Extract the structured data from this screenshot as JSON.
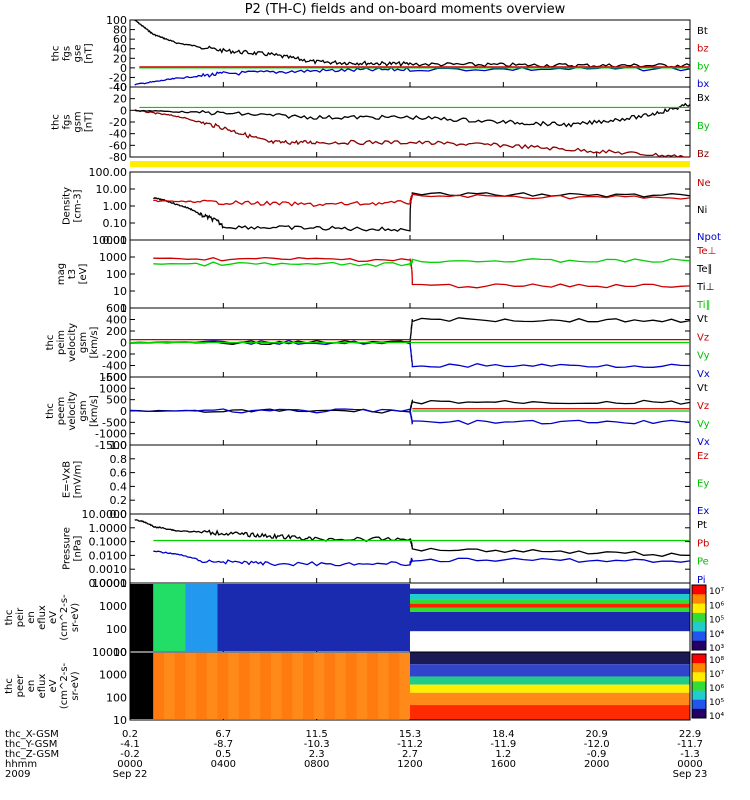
{
  "title": "P2 (TH-C) fields and on-board moments overview",
  "colors": {
    "black": "#000000",
    "red": "#cc0000",
    "darkred": "#8b0000",
    "green": "#00d000",
    "blue": "#0000cc",
    "yellow": "#ffee00"
  },
  "panels": [
    {
      "id": "fgs-gse",
      "ylabel": [
        "thc",
        "fgs",
        "gse",
        "[nT]"
      ],
      "yticks": [
        "100",
        "80",
        "60",
        "40",
        "20",
        "0",
        "-20",
        "-40"
      ],
      "legend": [
        {
          "label": "Bt",
          "color": "#000000"
        },
        {
          "label": "bz",
          "color": "#cc0000"
        },
        {
          "label": "by",
          "color": "#00c000"
        },
        {
          "label": "bx",
          "color": "#0000cc"
        }
      ]
    },
    {
      "id": "fgs-gsm",
      "ylabel": [
        "thc",
        "fgs",
        "gsm",
        "[nT]"
      ],
      "yticks": [
        "40",
        "20",
        "0",
        "-20",
        "-40",
        "-60",
        "-80"
      ],
      "legend": [
        {
          "label": "Bx",
          "color": "#000000"
        },
        {
          "label": "By",
          "color": "#00c000"
        },
        {
          "label": "Bz",
          "color": "#8b0000"
        }
      ]
    },
    {
      "id": "density",
      "ylabel": [
        "Density",
        "[cm-3]"
      ],
      "yticks": [
        "100.00",
        "10.00",
        "1.00",
        "0.10",
        "0.01"
      ],
      "legend": [
        {
          "label": "Ne",
          "color": "#cc0000"
        },
        {
          "label": "Ni",
          "color": "#000000"
        },
        {
          "label": "Npot",
          "color": "#0000cc"
        }
      ]
    },
    {
      "id": "temperature",
      "ylabel": [
        "mag",
        "t3",
        "[eV]"
      ],
      "yticks": [
        "10000",
        "1000",
        "100",
        "10",
        "1"
      ],
      "legend": [
        {
          "label": "Te⊥",
          "color": "#cc0000"
        },
        {
          "label": "Te∥",
          "color": "#000000"
        },
        {
          "label": "Ti⊥",
          "color": "#000000"
        },
        {
          "label": "Ti∥",
          "color": "#00c000"
        }
      ]
    },
    {
      "id": "peim-velocity",
      "ylabel": [
        "thc",
        "peim",
        "velocity",
        "gsm",
        "[km/s]"
      ],
      "yticks": [
        "600",
        "400",
        "200",
        "0",
        "-200",
        "-400",
        "-600"
      ],
      "legend": [
        {
          "label": "Vt",
          "color": "#000000"
        },
        {
          "label": "Vz",
          "color": "#cc0000"
        },
        {
          "label": "Vy",
          "color": "#00c000"
        },
        {
          "label": "Vx",
          "color": "#0000cc"
        }
      ]
    },
    {
      "id": "peem-velocity",
      "ylabel": [
        "thc",
        "peem",
        "velocity",
        "gsm",
        "[km/s]"
      ],
      "yticks": [
        "1500",
        "1000",
        "500",
        "0",
        "-500",
        "-1000",
        "-1500"
      ],
      "legend": [
        {
          "label": "Vt",
          "color": "#000000"
        },
        {
          "label": "Vz",
          "color": "#cc0000"
        },
        {
          "label": "Vy",
          "color": "#00c000"
        },
        {
          "label": "Vx",
          "color": "#0000cc"
        }
      ]
    },
    {
      "id": "efield",
      "ylabel": [
        "E=-VxB",
        "[mV/m]"
      ],
      "yticks": [
        "1.0",
        "0.8",
        "0.6",
        "0.4",
        "0.2",
        "0.0"
      ],
      "legend": [
        {
          "label": "Ez",
          "color": "#cc0000"
        },
        {
          "label": "Ey",
          "color": "#00c000"
        },
        {
          "label": "Ex",
          "color": "#0000cc"
        }
      ]
    },
    {
      "id": "pressure",
      "ylabel": [
        "Pressure",
        "[nPa]"
      ],
      "yticks": [
        "10.0000",
        "1.0000",
        "0.1000",
        "0.0100",
        "0.0010",
        "0.0001"
      ],
      "legend": [
        {
          "label": "Pt",
          "color": "#000000"
        },
        {
          "label": "Pb",
          "color": "#cc0000"
        },
        {
          "label": "Pe",
          "color": "#00c000"
        },
        {
          "label": "Pi",
          "color": "#0000cc"
        }
      ]
    },
    {
      "id": "peir-spec",
      "ylabel": [
        "thc",
        "peir",
        "en",
        "eflux",
        "eV",
        "(cm^2-s-",
        "sr-eV)"
      ],
      "yticks": [
        "10000",
        "1000",
        "100",
        "10"
      ],
      "colorbar": [
        "10⁷",
        "10⁶",
        "10⁵",
        "10⁴",
        "10³"
      ]
    },
    {
      "id": "peer-spec",
      "ylabel": [
        "thc",
        "peer",
        "en",
        "eflux",
        "eV",
        "(cm^2-s-",
        "sr-eV)"
      ],
      "yticks": [
        "10000",
        "1000",
        "100",
        "10"
      ],
      "colorbar": [
        "10⁸",
        "10⁷",
        "10⁶",
        "10⁵",
        "10⁴"
      ]
    }
  ],
  "xaxis": {
    "row_labels": [
      "thc_X-GSM",
      "thc_Y-GSM",
      "thc_Z-GSM",
      "hhmm",
      "2009"
    ],
    "columns": [
      {
        "values": [
          "0.2",
          "-4.1",
          "-0.2",
          "0000",
          "Sep 22"
        ]
      },
      {
        "values": [
          "6.7",
          "-8.7",
          "0.5",
          "0400",
          ""
        ]
      },
      {
        "values": [
          "11.5",
          "-10.3",
          "2.3",
          "0800",
          ""
        ]
      },
      {
        "values": [
          "15.3",
          "-11.2",
          "2.7",
          "1200",
          ""
        ]
      },
      {
        "values": [
          "18.4",
          "-11.9",
          "1.2",
          "1600",
          ""
        ]
      },
      {
        "values": [
          "20.9",
          "-12.0",
          "-0.9",
          "2000",
          ""
        ]
      },
      {
        "values": [
          "22.9",
          "-11.7",
          "-1.3",
          "0000",
          "Sep 23"
        ]
      }
    ]
  },
  "chart_data": {
    "type": "line",
    "title": "P2 (TH-C) fields and on-board moments overview",
    "x_hours": [
      0,
      4,
      8,
      12,
      16,
      20,
      24
    ],
    "x_tick_labels": [
      "0000",
      "0400",
      "0800",
      "1200",
      "1600",
      "2000",
      "0000"
    ],
    "date_start": "Sep 22 2009",
    "date_end": "Sep 23 2009",
    "series": [
      {
        "panel": "fgs-gse",
        "name": "Bt",
        "x": [
          0.2,
          1,
          2,
          4,
          6,
          8,
          10,
          12,
          16,
          20,
          24
        ],
        "y": [
          100,
          70,
          52,
          36,
          28,
          12,
          10,
          8,
          6,
          5,
          5
        ]
      },
      {
        "panel": "fgs-gse",
        "name": "bx",
        "x": [
          0.2,
          2,
          4,
          8,
          12,
          24
        ],
        "y": [
          -35,
          -22,
          -12,
          -6,
          -3,
          -2
        ]
      },
      {
        "panel": "fgs-gsm",
        "name": "Bz",
        "x": [
          0.2,
          2,
          4,
          6,
          8,
          12,
          16,
          20,
          24
        ],
        "y": [
          0,
          -10,
          -30,
          -55,
          -55,
          -55,
          -60,
          -70,
          -80
        ]
      },
      {
        "panel": "fgs-gsm",
        "name": "Bx",
        "x": [
          0.2,
          4,
          8,
          12,
          16,
          19,
          22,
          24
        ],
        "y": [
          0,
          -5,
          -12,
          -12,
          -20,
          -25,
          -10,
          10
        ]
      },
      {
        "panel": "density",
        "name": "Ni",
        "x": [
          1,
          2,
          3,
          4,
          8,
          12,
          12.1,
          24
        ],
        "y": [
          3,
          1.2,
          0.3,
          0.06,
          0.05,
          0.04,
          5,
          4
        ]
      },
      {
        "panel": "density",
        "name": "Ne",
        "x": [
          1,
          4,
          8,
          12,
          12.1,
          24
        ],
        "y": [
          2,
          1.6,
          1.2,
          1.6,
          4,
          3
        ]
      },
      {
        "panel": "temperature",
        "name": "Te⊥",
        "x": [
          1,
          12,
          12.1,
          24
        ],
        "y": [
          800,
          700,
          20,
          20
        ]
      },
      {
        "panel": "temperature",
        "name": "Ti∥",
        "x": [
          1,
          12,
          12.1,
          24
        ],
        "y": [
          400,
          350,
          600,
          600
        ]
      },
      {
        "panel": "peim-velocity",
        "name": "Vt",
        "x": [
          0,
          12,
          12.1,
          24
        ],
        "y": [
          0,
          0,
          400,
          380
        ]
      },
      {
        "panel": "peim-velocity",
        "name": "Vx",
        "x": [
          0,
          12,
          12.1,
          24
        ],
        "y": [
          0,
          0,
          -400,
          -400
        ]
      },
      {
        "panel": "peem-velocity",
        "name": "Vt",
        "x": [
          0,
          12,
          12.1,
          24
        ],
        "y": [
          0,
          0,
          400,
          380
        ]
      },
      {
        "panel": "peem-velocity",
        "name": "Vx",
        "x": [
          0,
          12,
          12.1,
          24
        ],
        "y": [
          0,
          0,
          -500,
          -500
        ]
      },
      {
        "panel": "pressure",
        "name": "Pt",
        "x": [
          0.2,
          1,
          2,
          4,
          6,
          8,
          12,
          12.1,
          24
        ],
        "y": [
          4,
          1.2,
          0.6,
          0.4,
          0.25,
          0.15,
          0.15,
          0.03,
          0.01
        ]
      },
      {
        "panel": "pressure",
        "name": "Pi",
        "x": [
          1,
          3,
          6,
          12,
          12.1,
          24
        ],
        "y": [
          0.02,
          0.004,
          0.0025,
          0.0025,
          0.005,
          0.004
        ]
      }
    ]
  }
}
